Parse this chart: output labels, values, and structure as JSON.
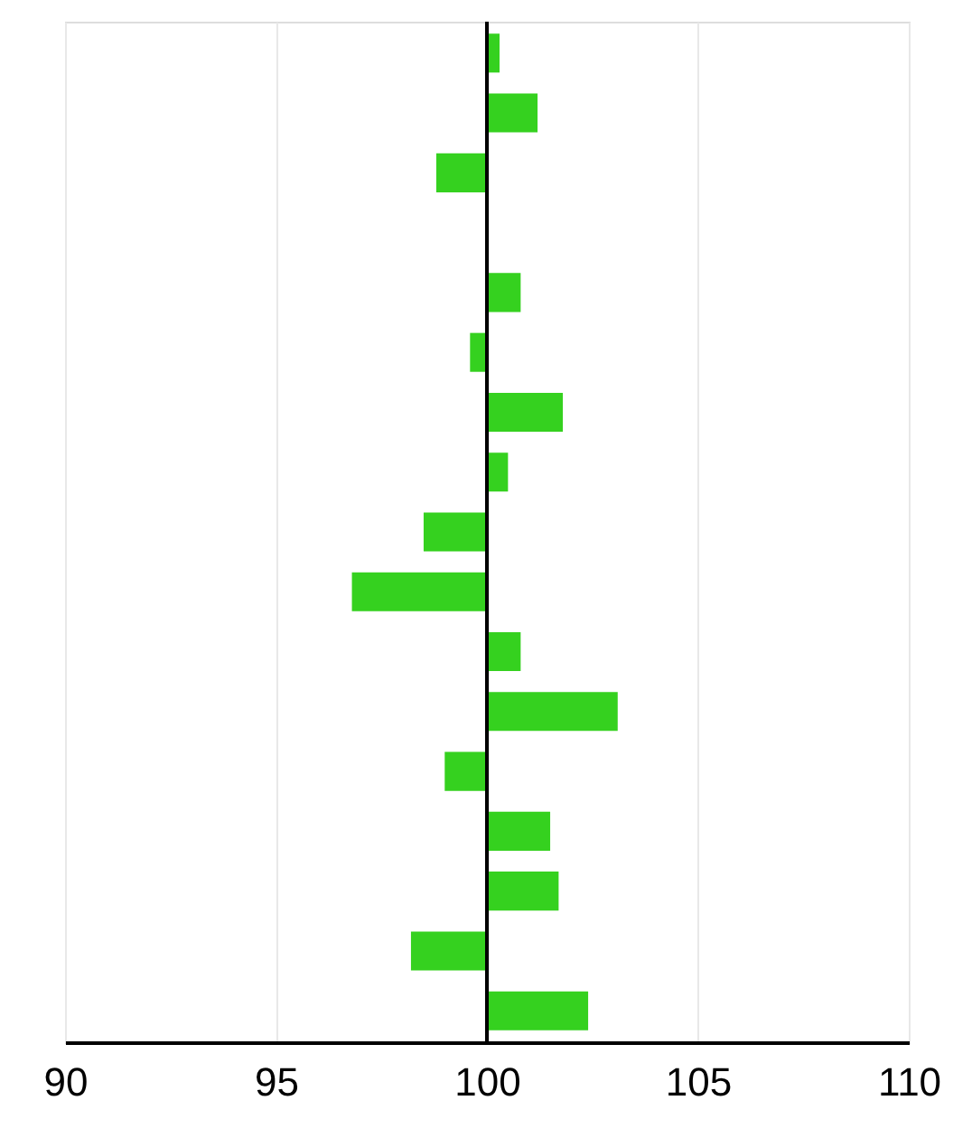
{
  "chart_data": {
    "type": "bar",
    "orientation": "horizontal",
    "categories": [
      null,
      null,
      null,
      null,
      null,
      null,
      null,
      null,
      null,
      null,
      null,
      null,
      null,
      null,
      null,
      null,
      null
    ],
    "base": [
      100,
      100,
      100,
      null,
      100,
      100,
      100,
      100,
      100,
      100,
      100,
      100,
      100,
      100,
      100,
      100,
      100
    ],
    "values": [
      0.3,
      1.2,
      -1.2,
      null,
      0.8,
      -0.4,
      1.8,
      0.5,
      -1.5,
      -3.2,
      0.8,
      3.1,
      -1.0,
      1.5,
      1.7,
      -1.8,
      2.4
    ],
    "color": "#35d11f",
    "xlim": [
      90,
      110
    ],
    "xticks": [
      90,
      95,
      100,
      105,
      110
    ],
    "grid": "x",
    "tick_labels": "x",
    "ref_lines": [
      {
        "axis": "x",
        "value": 100,
        "color": "#000000"
      }
    ]
  }
}
